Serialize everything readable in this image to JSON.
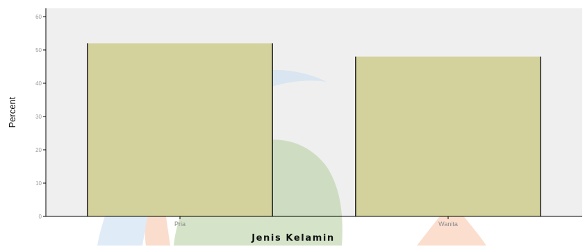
{
  "chart_data": {
    "type": "bar",
    "xlabel": "Jenis Kelamin",
    "ylabel": "Percent",
    "categories": [
      "Pria",
      "Wanita"
    ],
    "values": [
      52,
      48
    ],
    "ylim": [
      0,
      62.5
    ],
    "yticks": [
      "0",
      "10",
      "20",
      "30",
      "40",
      "50",
      "60"
    ],
    "grid": false,
    "colors": {
      "plot_background": "#efefef",
      "bar_fill": "#d3d29c",
      "bar_edge": "#1f1f1f",
      "axis": "#000000",
      "watermark_blue": "#c7dcf3",
      "watermark_orange": "#f7c2a6",
      "watermark_green": "#b4cf9e"
    }
  }
}
